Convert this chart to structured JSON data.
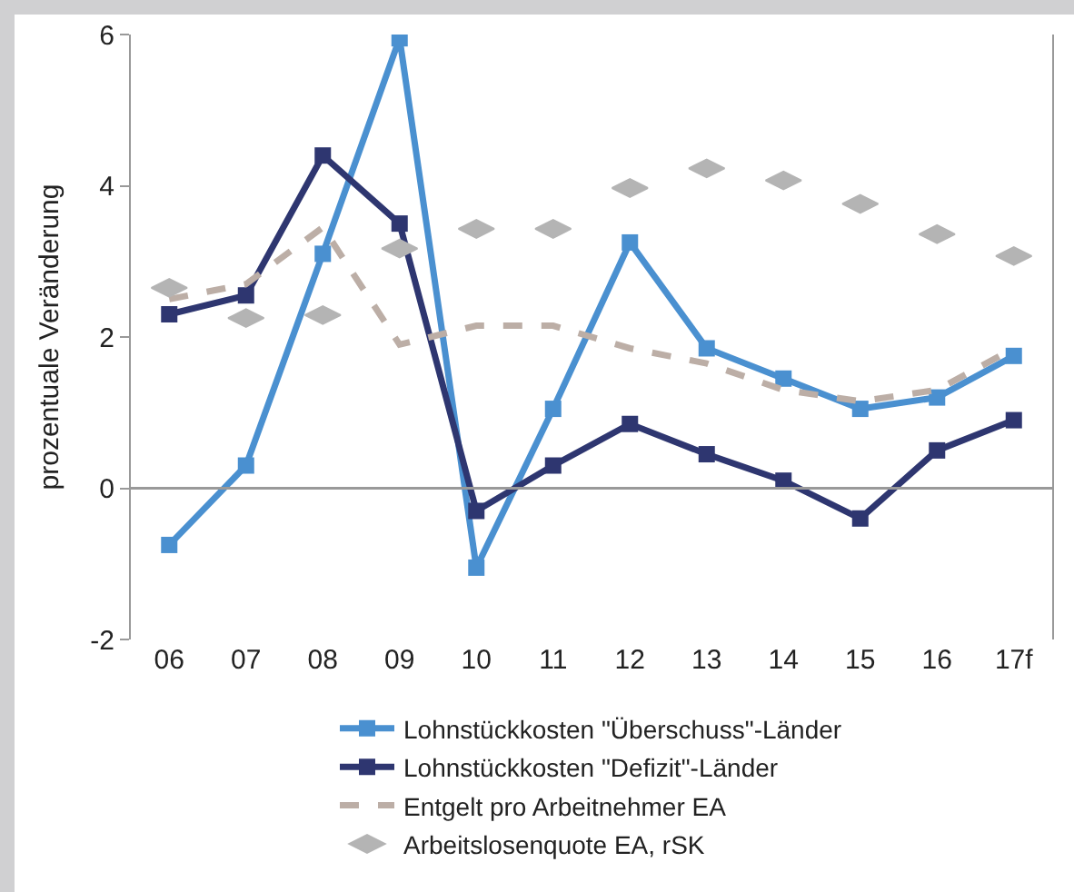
{
  "chart_data": {
    "type": "line",
    "ylabel": "prozentuale Veränderung",
    "categories": [
      "06",
      "07",
      "08",
      "09",
      "10",
      "11",
      "12",
      "13",
      "14",
      "15",
      "16",
      "17f"
    ],
    "ylim": [
      -2,
      6
    ],
    "yticks": [
      -2,
      0,
      2,
      4,
      6
    ],
    "ref_lines": [
      {
        "axis": "y",
        "value": 0,
        "color": "#999999"
      }
    ],
    "grid": false,
    "legend": "bottom",
    "series": [
      {
        "name": "Lohnstückkosten \"Überschuss\"-Länder",
        "color": "#4a90d0",
        "marker": "square",
        "values": [
          -0.75,
          0.3,
          3.1,
          5.95,
          -1.05,
          1.05,
          3.25,
          1.85,
          1.45,
          1.05,
          1.2,
          1.75
        ]
      },
      {
        "name": "Lohnstückkosten \"Defizit\"-Länder",
        "color": "#2e3670",
        "marker": "square",
        "values": [
          2.3,
          2.55,
          4.4,
          3.5,
          -0.3,
          0.3,
          0.85,
          0.45,
          0.1,
          -0.4,
          0.5,
          0.9
        ]
      },
      {
        "name": "Entgelt pro Arbeitnehmer EA",
        "color": "#bcaea6",
        "line_style": "dashed",
        "values": [
          2.5,
          2.7,
          3.45,
          1.9,
          2.15,
          2.15,
          1.85,
          1.65,
          1.3,
          1.15,
          1.3,
          1.85
        ]
      },
      {
        "name": "Arbeitslosenquote EA, rSK",
        "color": "#b4b4b4",
        "type": "scatter",
        "values": [
          2.65,
          2.25,
          2.29,
          3.17,
          3.43,
          3.43,
          3.97,
          4.23,
          4.07,
          3.76,
          3.36,
          3.07
        ]
      }
    ]
  }
}
